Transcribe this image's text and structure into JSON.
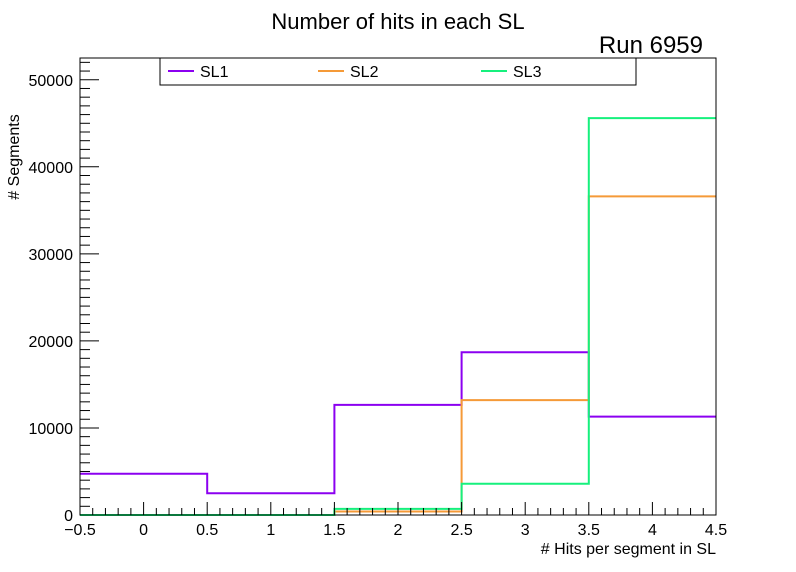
{
  "chart_data": {
    "type": "histogram",
    "title": "Number of hits in each SL",
    "annotation": "Run 6959",
    "xlabel": "# Hits per segment in SL",
    "ylabel": "# Segments",
    "xlim": [
      -0.5,
      4.5
    ],
    "ylim": [
      0,
      52500
    ],
    "bin_edges": [
      -0.5,
      0.5,
      1.5,
      2.5,
      3.5,
      4.5
    ],
    "x_ticks": [
      -0.5,
      0,
      0.5,
      1,
      1.5,
      2,
      2.5,
      3,
      3.5,
      4,
      4.5
    ],
    "x_tick_labels": [
      "−0.5",
      "0",
      "0.5",
      "1",
      "1.5",
      "2",
      "2.5",
      "3",
      "3.5",
      "4",
      "4.5"
    ],
    "y_ticks": [
      0,
      10000,
      20000,
      30000,
      40000,
      50000
    ],
    "y_tick_labels": [
      "0",
      "10000",
      "20000",
      "30000",
      "40000",
      "50000"
    ],
    "legend_position": "top",
    "series": [
      {
        "name": "SL1",
        "color": "#8b00f0",
        "values": [
          4750,
          2500,
          12650,
          18700,
          11300
        ]
      },
      {
        "name": "SL2",
        "color": "#f59a38",
        "values": [
          0,
          0,
          400,
          13200,
          36600
        ]
      },
      {
        "name": "SL3",
        "color": "#16f07d",
        "values": [
          0,
          0,
          700,
          3600,
          45600
        ]
      }
    ]
  }
}
